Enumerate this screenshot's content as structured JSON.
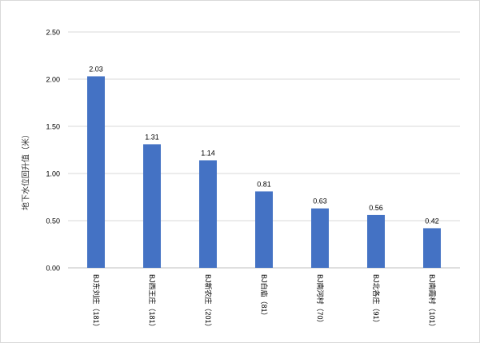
{
  "chart_data": {
    "type": "bar",
    "title": "",
    "xlabel": "",
    "ylabel": "地下水位回升值（米）",
    "ylim": [
      0,
      2.5
    ],
    "yticks": [
      "0.00",
      "0.50",
      "1.00",
      "1.50",
      "2.00",
      "2.50"
    ],
    "categories": [
      "BJ东刘庄（181）",
      "BJ西王庄（181）",
      "BJ新农庄（201）",
      "BJ白庙（81）",
      "BJ南河村（70）",
      "BJ北各庄（91）",
      "BJ南霞村（101）"
    ],
    "values": [
      2.03,
      1.31,
      1.14,
      0.81,
      0.63,
      0.56,
      0.42
    ],
    "value_labels": [
      "2.03",
      "1.31",
      "1.14",
      "0.81",
      "0.63",
      "0.56",
      "0.42"
    ],
    "grid": true,
    "legend": "none",
    "bar_color": "#4472c4",
    "grid_color": "#d9d9d9",
    "axis_color": "#bfbfbf",
    "text_color": "#000000"
  }
}
